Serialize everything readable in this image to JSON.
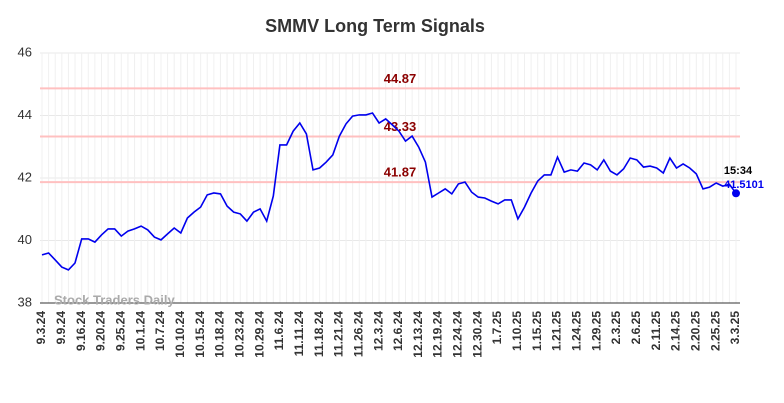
{
  "chart_data": {
    "type": "line",
    "title": "SMMV Long Term Signals",
    "categories": [
      "9.3.24",
      null,
      null,
      "9.9.24",
      null,
      null,
      "9.16.24",
      null,
      null,
      "9.20.24",
      null,
      null,
      "9.25.24",
      null,
      null,
      "10.1.24",
      null,
      null,
      "10.7.24",
      null,
      null,
      "10.10.24",
      null,
      null,
      "10.15.24",
      null,
      null,
      "10.18.24",
      null,
      null,
      "10.23.24",
      null,
      null,
      "10.29.24",
      null,
      null,
      "11.6.24",
      null,
      null,
      "11.11.24",
      null,
      null,
      "11.18.24",
      null,
      null,
      "11.21.24",
      null,
      null,
      "11.26.24",
      null,
      null,
      "12.3.24",
      null,
      null,
      "12.6.24",
      null,
      null,
      "12.13.24",
      null,
      null,
      "12.19.24",
      null,
      null,
      "12.24.24",
      null,
      null,
      "12.30.24",
      null,
      null,
      "1.7.25",
      null,
      null,
      "1.10.25",
      null,
      null,
      "1.15.25",
      null,
      null,
      "1.21.25",
      null,
      null,
      "1.24.25",
      null,
      null,
      "1.29.25",
      null,
      null,
      "2.3.25",
      null,
      null,
      "2.6.25",
      null,
      null,
      "2.11.25",
      null,
      null,
      "2.14.25",
      null,
      null,
      "2.20.25",
      null,
      null,
      "2.25.25",
      null,
      null,
      "3.3.25"
    ],
    "values": [
      39.54,
      39.6,
      39.38,
      39.15,
      39.06,
      39.28,
      40.05,
      40.05,
      39.95,
      40.18,
      40.37,
      40.37,
      40.14,
      40.3,
      40.37,
      40.46,
      40.34,
      40.11,
      40.02,
      40.21,
      40.4,
      40.24,
      40.72,
      40.91,
      41.07,
      41.46,
      41.52,
      41.49,
      41.1,
      40.91,
      40.85,
      40.62,
      40.91,
      41.01,
      40.62,
      41.42,
      43.06,
      43.06,
      43.5,
      43.76,
      43.41,
      42.26,
      42.32,
      42.51,
      42.74,
      43.34,
      43.73,
      43.98,
      44.02,
      44.02,
      44.08,
      43.76,
      43.89,
      43.7,
      43.5,
      43.18,
      43.34,
      42.99,
      42.51,
      41.39,
      41.52,
      41.65,
      41.49,
      41.81,
      41.87,
      41.55,
      41.39,
      41.36,
      41.26,
      41.17,
      41.3,
      41.3,
      40.69,
      41.07,
      41.52,
      41.9,
      42.1,
      42.1,
      42.67,
      42.19,
      42.26,
      42.22,
      42.48,
      42.42,
      42.26,
      42.58,
      42.22,
      42.1,
      42.29,
      42.64,
      42.58,
      42.35,
      42.38,
      42.32,
      42.16,
      42.64,
      42.32,
      42.45,
      42.32,
      42.13,
      41.65,
      41.71,
      41.84,
      41.74,
      41.8,
      41.5101
    ],
    "color": "#0000ee",
    "ylim": [
      38,
      46
    ],
    "yticks": [
      38,
      40,
      42,
      44,
      46
    ],
    "grid": true,
    "hlines": [
      44.87,
      43.33,
      41.87
    ],
    "hline_color": "#ffc0c0",
    "hline_label_color": "#8b0000",
    "last_time": "15:34",
    "watermark": "Stock Traders Daily"
  }
}
